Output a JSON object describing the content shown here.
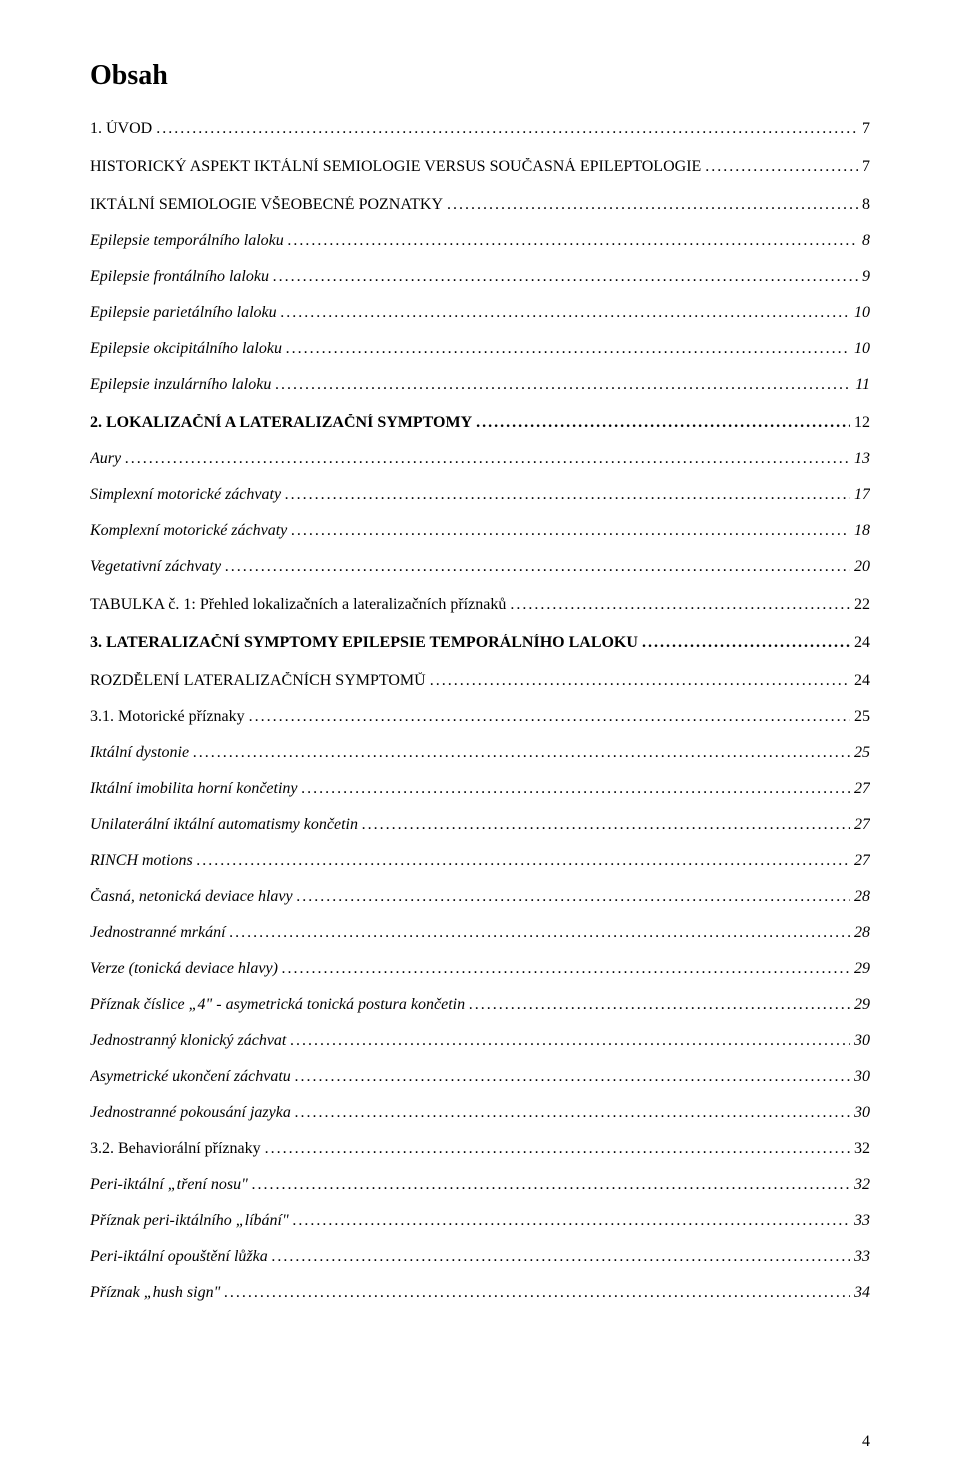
{
  "title": "Obsah",
  "page_number": "4",
  "styles": {
    "font_family": "Times New Roman",
    "title_fontsize": 28,
    "row_fontsize": 16,
    "text_color": "#000000",
    "background_color": "#ffffff"
  },
  "toc": [
    {
      "label": "1. ÚVOD",
      "page": "7",
      "level": "lvl1"
    },
    {
      "label": "HISTORICKÝ ASPEKT IKTÁLNÍ SEMIOLOGIE VERSUS SOUČASNÁ EPILEPTOLOGIE",
      "page": "7",
      "level": "lvl1"
    },
    {
      "label": "IKTÁLNÍ SEMIOLOGIE VŠEOBECNÉ POZNATKY",
      "page": "8",
      "level": "lvl1"
    },
    {
      "label": "Epilepsie temporálního laloku",
      "page": "8",
      "level": "lvl2"
    },
    {
      "label": "Epilepsie frontálního laloku",
      "page": "9",
      "level": "lvl2"
    },
    {
      "label": "Epilepsie parietálního laloku",
      "page": "10",
      "level": "lvl2"
    },
    {
      "label": "Epilepsie okcipitálního laloku",
      "page": "10",
      "level": "lvl2"
    },
    {
      "label": "Epilepsie inzulárního laloku",
      "page": "11",
      "level": "lvl2"
    },
    {
      "label": "2. LOKALIZAČNÍ A LATERALIZAČNÍ SYMPTOMY",
      "page": "12",
      "level": "lvl1b"
    },
    {
      "label": "Aury",
      "page": "13",
      "level": "lvl2"
    },
    {
      "label": "Simplexní motorické záchvaty",
      "page": "17",
      "level": "lvl2"
    },
    {
      "label": "Komplexní motorické záchvaty",
      "page": "18",
      "level": "lvl2"
    },
    {
      "label": "Vegetativní záchvaty",
      "page": "20",
      "level": "lvl2"
    },
    {
      "label": "TABULKA č. 1: Přehled lokalizačních a lateralizačních příznaků",
      "page": "22",
      "level": "lvl1"
    },
    {
      "label": "3. LATERALIZAČNÍ SYMPTOMY EPILEPSIE TEMPORÁLNÍHO LALOKU",
      "page": "24",
      "level": "lvl1b"
    },
    {
      "label": "ROZDĚLENÍ LATERALIZAČNÍCH SYMPTOMŮ",
      "page": "24",
      "level": "lvl1"
    },
    {
      "label": "3.1. Motorické příznaky",
      "page": "25",
      "level": "lvl3"
    },
    {
      "label": "Iktální dystonie",
      "page": "25",
      "level": "lvl2"
    },
    {
      "label": "Iktální imobilita horní končetiny",
      "page": "27",
      "level": "lvl2"
    },
    {
      "label": "Unilaterální iktální automatismy končetin",
      "page": "27",
      "level": "lvl2"
    },
    {
      "label": "RINCH motions",
      "page": "27",
      "level": "lvl2"
    },
    {
      "label": "Časná, netonická deviace hlavy",
      "page": "28",
      "level": "lvl2"
    },
    {
      "label": "Jednostranné mrkání",
      "page": "28",
      "level": "lvl2"
    },
    {
      "label": "Verze (tonická deviace hlavy)",
      "page": "29",
      "level": "lvl2"
    },
    {
      "label": "Příznak číslice „4\" - asymetrická tonická postura končetin",
      "page": "29",
      "level": "lvl2"
    },
    {
      "label": "Jednostranný klonický záchvat",
      "page": "30",
      "level": "lvl2"
    },
    {
      "label": "Asymetrické ukončení záchvatu",
      "page": "30",
      "level": "lvl2"
    },
    {
      "label": "Jednostranné pokousání jazyka",
      "page": "30",
      "level": "lvl2"
    },
    {
      "label": "3.2. Behaviorální příznaky",
      "page": "32",
      "level": "lvl3"
    },
    {
      "label": "Peri-iktální „tření nosu\"",
      "page": "32",
      "level": "lvl2"
    },
    {
      "label": "Příznak peri-iktálního „líbání\"",
      "page": "33",
      "level": "lvl2"
    },
    {
      "label": "Peri-iktální opouštění lůžka",
      "page": "33",
      "level": "lvl2"
    },
    {
      "label": "Příznak „hush sign\"",
      "page": "34",
      "level": "lvl2"
    }
  ]
}
